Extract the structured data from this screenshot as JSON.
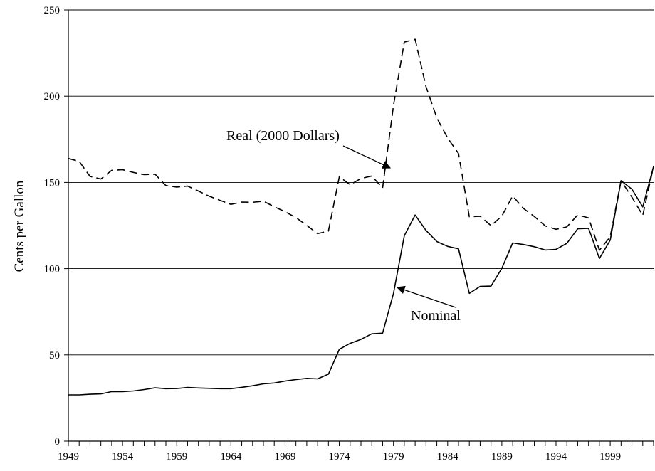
{
  "chart_data": {
    "type": "line",
    "title": "",
    "xlabel": "",
    "ylabel": "Cents per Gallon",
    "xlim": [
      1949,
      2003
    ],
    "ylim": [
      0,
      250
    ],
    "yticks": [
      0,
      50,
      100,
      150,
      200,
      250
    ],
    "xtick_labels": [
      "1949",
      "1954",
      "1959",
      "1964",
      "1969",
      "1974",
      "1979",
      "1984",
      "1989",
      "1994",
      "1999"
    ],
    "grid": "horizontal",
    "x": [
      1949,
      1950,
      1951,
      1952,
      1953,
      1954,
      1955,
      1956,
      1957,
      1958,
      1959,
      1960,
      1961,
      1962,
      1963,
      1964,
      1965,
      1966,
      1967,
      1968,
      1969,
      1970,
      1971,
      1972,
      1973,
      1974,
      1975,
      1976,
      1977,
      1978,
      1979,
      1980,
      1981,
      1982,
      1983,
      1984,
      1985,
      1986,
      1987,
      1988,
      1989,
      1990,
      1991,
      1992,
      1993,
      1994,
      1995,
      1996,
      1997,
      1998,
      1999,
      2000,
      2001,
      2002,
      2003
    ],
    "series": [
      {
        "name": "Nominal",
        "style": "solid",
        "values": [
          26.8,
          26.8,
          27.2,
          27.4,
          28.7,
          28.7,
          29.1,
          29.9,
          30.9,
          30.4,
          30.5,
          31.1,
          30.8,
          30.6,
          30.4,
          30.4,
          31.2,
          32.1,
          33.2,
          33.7,
          34.8,
          35.7,
          36.4,
          36.1,
          38.8,
          53.2,
          56.7,
          59.0,
          62.2,
          62.6,
          85.7,
          119.1,
          131.1,
          122.2,
          115.7,
          112.9,
          111.5,
          85.7,
          89.7,
          89.9,
          100.2,
          114.9,
          114.0,
          112.7,
          110.8,
          111.2,
          114.7,
          123.1,
          123.4,
          105.9,
          116.5,
          151.0,
          146.1,
          135.8,
          159.3
        ]
      },
      {
        "name": "Real (2000 Dollars)",
        "style": "dashed",
        "values": [
          163.9,
          162.2,
          153.5,
          152.0,
          157.0,
          157.4,
          155.8,
          154.5,
          154.8,
          148.2,
          147.3,
          147.9,
          145.0,
          142.0,
          139.6,
          137.3,
          138.6,
          138.5,
          139.1,
          135.9,
          133.0,
          129.6,
          125.1,
          120.3,
          121.8,
          153.3,
          148.7,
          152.3,
          153.7,
          146.8,
          194.6,
          231.4,
          233.0,
          205.6,
          187.4,
          175.7,
          166.8,
          130.1,
          130.4,
          124.9,
          130.5,
          142.2,
          134.9,
          130.2,
          124.8,
          122.8,
          124.2,
          131.2,
          129.4,
          110.7,
          118.5,
          151.0,
          141.4,
          130.9,
          159.3
        ]
      }
    ],
    "annotations": [
      {
        "text": "Real (2000 Dollars)",
        "points_to": {
          "x": 1978,
          "y": 158
        }
      },
      {
        "text": "Nominal",
        "points_to": {
          "x": 1979,
          "y": 89
        }
      }
    ]
  }
}
